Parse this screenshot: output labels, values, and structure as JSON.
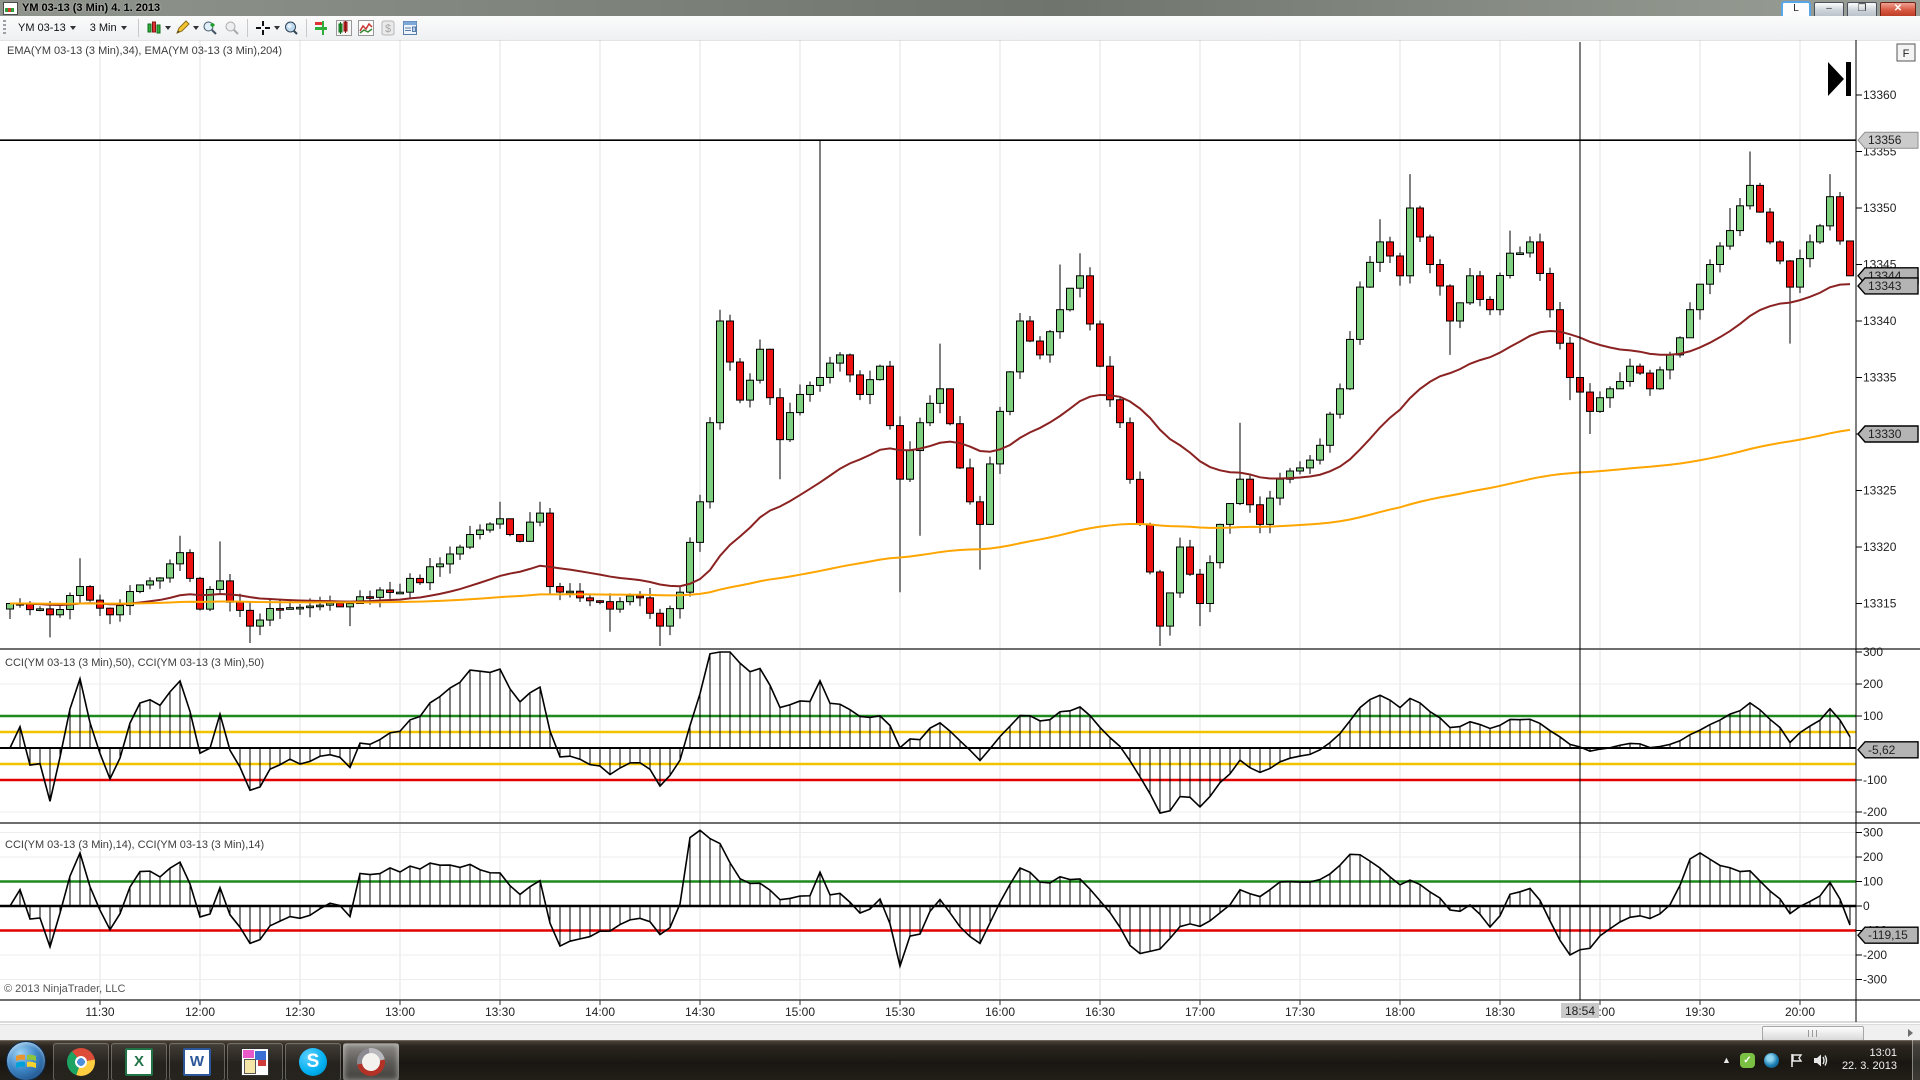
{
  "titlebar": {
    "title": "YM 03-13 (3 Min)  4. 1. 2013",
    "l_label": "L",
    "buttons": {
      "minimize": "–",
      "restore": "❐",
      "close": "✕"
    }
  },
  "toolbar": {
    "instrument": "YM 03-13",
    "interval": "3 Min",
    "icon_names": [
      "chart-style-candles",
      "drawing-pencil",
      "zoom-in",
      "zoom-out",
      "crosshair",
      "data-box",
      "chart-trader",
      "data-series",
      "indicators",
      "account",
      "properties"
    ]
  },
  "chart": {
    "copyright": "© 2013 NinjaTrader, LLC",
    "goto_last_bar_icon": "play-to-end",
    "fixed_scale_label": "F",
    "colors": {
      "candle_up": "#7ed07e",
      "candle_down": "#ee1111",
      "ema34": "#8b2222",
      "ema204": "#ffa500",
      "level_green": "#1e8a1e",
      "level_yellow": "#f2c400",
      "level_red": "#e20000",
      "grid": "#e3e3e3",
      "grid_faint": "#ededed"
    }
  },
  "chart_data": {
    "type": "candlestick+indicators",
    "instrument": "YM 03-13",
    "interval": "3 Min",
    "panels": {
      "main": {
        "label": "EMA(YM 03-13 (3 Min),34), EMA(YM 03-13 (3 Min),204)",
        "price_ticks": [
          13360,
          13355,
          13350,
          13345,
          13340,
          13335,
          13330,
          13325,
          13320,
          13315
        ],
        "horizontal_line_price": 13356,
        "markers": [
          {
            "text": "13356",
            "price": 13356,
            "style": "light"
          },
          {
            "text": "13344",
            "price": 13344,
            "style": "dark"
          },
          {
            "text": "13343",
            "price": 13343.1,
            "style": "dark"
          },
          {
            "text": "13330",
            "price": 13330,
            "style": "dark"
          }
        ],
        "indicators": [
          {
            "name": "EMA",
            "period": 34
          },
          {
            "name": "EMA",
            "period": 204
          }
        ]
      },
      "cci50": {
        "label": "CCI(YM 03-13 (3 Min),50), CCI(YM 03-13 (3 Min),50)",
        "ticks": [
          300,
          200,
          100,
          -100,
          -200
        ],
        "levels": [
          {
            "v": 100,
            "color": "green"
          },
          {
            "v": 50,
            "color": "yellow"
          },
          {
            "v": -50,
            "color": "yellow"
          },
          {
            "v": -100,
            "color": "red"
          }
        ],
        "marker": {
          "text": "-5,62",
          "v": -5.62
        },
        "period": 50
      },
      "cci14": {
        "label": "CCI(YM 03-13 (3 Min),14), CCI(YM 03-13 (3 Min),14)",
        "ticks": [
          300,
          200,
          100,
          0,
          -100,
          -200,
          -300
        ],
        "levels": [
          {
            "v": 100,
            "color": "green"
          },
          {
            "v": -100,
            "color": "red"
          }
        ],
        "marker": {
          "text": "-119,15",
          "v": -119.15
        },
        "period": 14
      }
    },
    "time_axis": {
      "labels": [
        {
          "m": 690,
          "text": "11:30"
        },
        {
          "m": 720,
          "text": "12:00"
        },
        {
          "m": 750,
          "text": "12:30"
        },
        {
          "m": 780,
          "text": "13:00"
        },
        {
          "m": 810,
          "text": "13:30"
        },
        {
          "m": 840,
          "text": "14:00"
        },
        {
          "m": 870,
          "text": "14:30"
        },
        {
          "m": 900,
          "text": "15:00"
        },
        {
          "m": 930,
          "text": "15:30"
        },
        {
          "m": 960,
          "text": "16:00"
        },
        {
          "m": 990,
          "text": "16:30"
        },
        {
          "m": 1020,
          "text": "17:00"
        },
        {
          "m": 1050,
          "text": "17:30"
        },
        {
          "m": 1080,
          "text": "18:00"
        },
        {
          "m": 1110,
          "text": "18:30"
        },
        {
          "m": 1140,
          "text": "19:00"
        },
        {
          "m": 1170,
          "text": "19:30"
        },
        {
          "m": 1200,
          "text": "20:00"
        }
      ],
      "crosshair": {
        "m": 1134,
        "text": "18:54"
      }
    },
    "price_anchors": [
      [
        663,
        13315,
        0,
        0
      ],
      [
        675,
        13314,
        0,
        13312
      ],
      [
        684,
        13316.5,
        13319,
        0
      ],
      [
        693,
        13314,
        0,
        0
      ],
      [
        705,
        13317,
        0,
        0
      ],
      [
        714,
        13319.5,
        13321,
        0
      ],
      [
        720,
        13314.5,
        0,
        0
      ],
      [
        726,
        13317,
        13320.5,
        0
      ],
      [
        735,
        13313,
        0,
        13311.5
      ],
      [
        744,
        13314.5,
        0,
        0
      ],
      [
        765,
        13315,
        0,
        13313
      ],
      [
        780,
        13316,
        0,
        0
      ],
      [
        792,
        13318.5,
        0,
        0
      ],
      [
        804,
        13321.5,
        0,
        0
      ],
      [
        810,
        13322.5,
        13324,
        0
      ],
      [
        816,
        13320.5,
        0,
        0
      ],
      [
        822,
        13323,
        13324,
        0
      ],
      [
        825,
        13316.5,
        0,
        0
      ],
      [
        834,
        13315.5,
        0,
        0
      ],
      [
        843,
        13314.5,
        0,
        13312.5
      ],
      [
        852,
        13315.5,
        0,
        0
      ],
      [
        858,
        13313,
        0,
        13311
      ],
      [
        864,
        13316,
        0,
        0
      ],
      [
        870,
        13324,
        0,
        0
      ],
      [
        873,
        13331,
        0,
        0
      ],
      [
        876,
        13340,
        13341,
        0
      ],
      [
        882,
        13333,
        0,
        0
      ],
      [
        888,
        13337.5,
        0,
        0
      ],
      [
        894,
        13329.5,
        0,
        13326
      ],
      [
        900,
        13333.5,
        0,
        0
      ],
      [
        906,
        13335,
        13356,
        0
      ],
      [
        912,
        13337,
        0,
        0
      ],
      [
        918,
        13333.5,
        0,
        0
      ],
      [
        924,
        13336,
        0,
        0
      ],
      [
        930,
        13326,
        0,
        13316
      ],
      [
        936,
        13331,
        0,
        13321
      ],
      [
        942,
        13334,
        13338,
        0
      ],
      [
        948,
        13327,
        0,
        0
      ],
      [
        954,
        13322,
        0,
        13318
      ],
      [
        960,
        13332,
        0,
        0
      ],
      [
        966,
        13340,
        0,
        0
      ],
      [
        972,
        13337,
        0,
        0
      ],
      [
        978,
        13341,
        13345,
        0
      ],
      [
        984,
        13344,
        13346,
        0
      ],
      [
        990,
        13336,
        0,
        0
      ],
      [
        996,
        13331,
        0,
        0
      ],
      [
        1002,
        13322,
        0,
        0
      ],
      [
        1008,
        13313,
        0,
        13311
      ],
      [
        1014,
        13320,
        0,
        0
      ],
      [
        1020,
        13315,
        0,
        13313
      ],
      [
        1026,
        13322,
        0,
        0
      ],
      [
        1032,
        13326,
        13331,
        0
      ],
      [
        1038,
        13322,
        0,
        0
      ],
      [
        1044,
        13326,
        0,
        0
      ],
      [
        1050,
        13327,
        0,
        0
      ],
      [
        1056,
        13329,
        0,
        0
      ],
      [
        1062,
        13334,
        0,
        0
      ],
      [
        1068,
        13343,
        0,
        0
      ],
      [
        1074,
        13347,
        13349,
        0
      ],
      [
        1080,
        13344,
        0,
        0
      ],
      [
        1083,
        13350,
        13353,
        0
      ],
      [
        1089,
        13345,
        0,
        0
      ],
      [
        1095,
        13340,
        0,
        13337
      ],
      [
        1101,
        13344,
        0,
        0
      ],
      [
        1107,
        13341,
        0,
        0
      ],
      [
        1113,
        13346,
        13348,
        0
      ],
      [
        1119,
        13347,
        0,
        0
      ],
      [
        1125,
        13341,
        0,
        0
      ],
      [
        1131,
        13335,
        0,
        13333
      ],
      [
        1137,
        13332,
        0,
        13330
      ],
      [
        1143,
        13334,
        0,
        0
      ],
      [
        1149,
        13336,
        0,
        0
      ],
      [
        1155,
        13334,
        0,
        0
      ],
      [
        1161,
        13337,
        0,
        0
      ],
      [
        1167,
        13341,
        0,
        0
      ],
      [
        1173,
        13345,
        0,
        0
      ],
      [
        1179,
        13348,
        13350,
        0
      ],
      [
        1185,
        13352,
        13355,
        0
      ],
      [
        1191,
        13347,
        0,
        0
      ],
      [
        1197,
        13343,
        0,
        13338
      ],
      [
        1203,
        13347,
        0,
        0
      ],
      [
        1209,
        13351,
        13353,
        0
      ],
      [
        1215,
        13344,
        0,
        0
      ]
    ]
  },
  "scrollbar": {
    "right_arrow": "right"
  },
  "taskbar": {
    "apps": [
      {
        "name": "chrome",
        "active": false
      },
      {
        "name": "excel",
        "label": "X",
        "active": false
      },
      {
        "name": "word",
        "label": "W",
        "active": false
      },
      {
        "name": "dictionary-app",
        "active": false
      },
      {
        "name": "skype",
        "label": "S",
        "active": false
      },
      {
        "name": "ninjatrader",
        "active": true
      }
    ],
    "tray": {
      "hidden_icons": "▲",
      "skype_status": "✓"
    },
    "clock": {
      "time": "13:01",
      "date": "22. 3. 2013"
    }
  }
}
